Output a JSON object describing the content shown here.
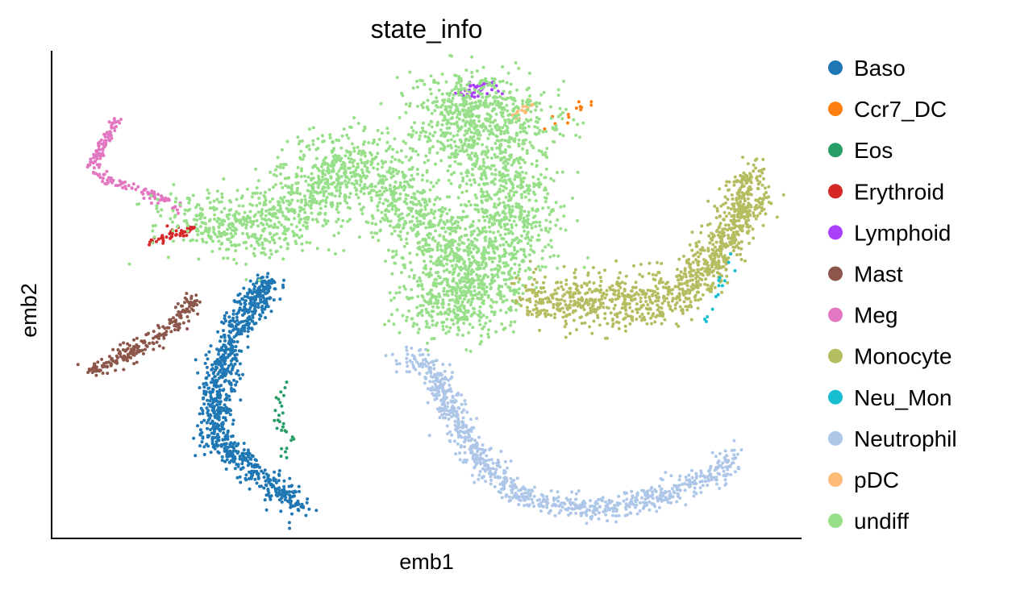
{
  "chart_data": {
    "type": "scatter",
    "title": "state_info",
    "xlabel": "emb1",
    "ylabel": "emb2",
    "xlim": [
      0,
      100
    ],
    "ylim": [
      0,
      100
    ],
    "ticks": false,
    "grid": false,
    "legend_position": "right-outside",
    "series": [
      {
        "name": "Baso",
        "color": "#1f77b4",
        "count": 900,
        "spread": [
          1.1,
          1.3
        ],
        "path": [
          [
            33,
            6
          ],
          [
            30,
            10
          ],
          [
            21.5,
            20
          ],
          [
            22,
            30
          ],
          [
            23.5,
            40
          ],
          [
            26,
            47
          ],
          [
            29,
            53
          ]
        ]
      },
      {
        "name": "Ccr7_DC",
        "color": "#ff7f0e",
        "count": 14,
        "spread": [
          0.5,
          0.7
        ],
        "path": [
          [
            66,
            84
          ],
          [
            69.5,
            87.5
          ],
          [
            72.5,
            89
          ]
        ]
      },
      {
        "name": "Eos",
        "color": "#279e68",
        "count": 28,
        "spread": [
          0.6,
          1.0
        ],
        "path": [
          [
            31.5,
            16
          ],
          [
            30.5,
            22
          ],
          [
            30.5,
            28
          ],
          [
            30.5,
            31
          ]
        ]
      },
      {
        "name": "Erythroid",
        "color": "#d62728",
        "count": 55,
        "spread": [
          0.4,
          0.5
        ],
        "path": [
          [
            13,
            61
          ],
          [
            16,
            62.5
          ],
          [
            18.5,
            63.5
          ]
        ]
      },
      {
        "name": "Lymphoid",
        "color": "#aa40fc",
        "count": 40,
        "spread": [
          0.8,
          0.6
        ],
        "path": [
          [
            55,
            91
          ],
          [
            57,
            93
          ],
          [
            59,
            92.5
          ]
        ]
      },
      {
        "name": "Mast",
        "color": "#8c564b",
        "count": 230,
        "spread": [
          0.7,
          0.9
        ],
        "path": [
          [
            5,
            34
          ],
          [
            9.5,
            37
          ],
          [
            15,
            42
          ],
          [
            19,
            49
          ]
        ]
      },
      {
        "name": "Meg",
        "color": "#e377c2",
        "count": 170,
        "spread": [
          0.4,
          0.6
        ],
        "path": [
          [
            8.5,
            86
          ],
          [
            6.5,
            80
          ],
          [
            5,
            76.5
          ],
          [
            8,
            73
          ],
          [
            14,
            70
          ],
          [
            17,
            68
          ]
        ]
      },
      {
        "name": "Monocyte",
        "color": "#b5bd61",
        "count": 1100,
        "spread": [
          1.3,
          2.8
        ],
        "path": [
          [
            63,
            49
          ],
          [
            70,
            48.5
          ],
          [
            78,
            48.5
          ],
          [
            84,
            51
          ],
          [
            88,
            56
          ],
          [
            91,
            64
          ],
          [
            94,
            74
          ]
        ]
      },
      {
        "name": "Neu_Mon",
        "color": "#17becf",
        "count": 14,
        "spread": [
          0.4,
          0.6
        ],
        "path": [
          [
            87,
            44
          ],
          [
            89,
            50
          ],
          [
            91,
            58
          ]
        ]
      },
      {
        "name": "Neutrophil",
        "color": "#aec7e8",
        "count": 900,
        "spread": [
          1.0,
          1.3
        ],
        "path": [
          [
            47,
            37
          ],
          [
            51,
            34
          ],
          [
            56,
            17
          ],
          [
            63,
            8
          ],
          [
            68,
            6
          ],
          [
            75,
            6
          ],
          [
            82,
            9
          ],
          [
            89,
            13
          ],
          [
            91,
            17
          ]
        ]
      },
      {
        "name": "pDC",
        "color": "#ffbb78",
        "count": 22,
        "spread": [
          0.35,
          0.4
        ],
        "path": [
          [
            61,
            86
          ],
          [
            63,
            88
          ],
          [
            64.5,
            90
          ]
        ]
      },
      {
        "name": "undiff",
        "color": "#98df8a",
        "count": 3200,
        "spread": [
          3.5,
          3.5
        ],
        "path": [
          [
            18,
            66
          ],
          [
            25,
            63
          ],
          [
            32,
            65
          ],
          [
            37,
            76
          ],
          [
            40,
            79
          ],
          [
            44,
            73
          ],
          [
            50,
            63
          ],
          [
            54,
            55
          ],
          [
            53,
            45
          ],
          [
            58,
            55
          ],
          [
            62,
            62
          ],
          [
            60,
            78
          ],
          [
            52,
            86
          ],
          [
            57,
            92
          ],
          [
            64,
            84
          ]
        ]
      }
    ]
  }
}
